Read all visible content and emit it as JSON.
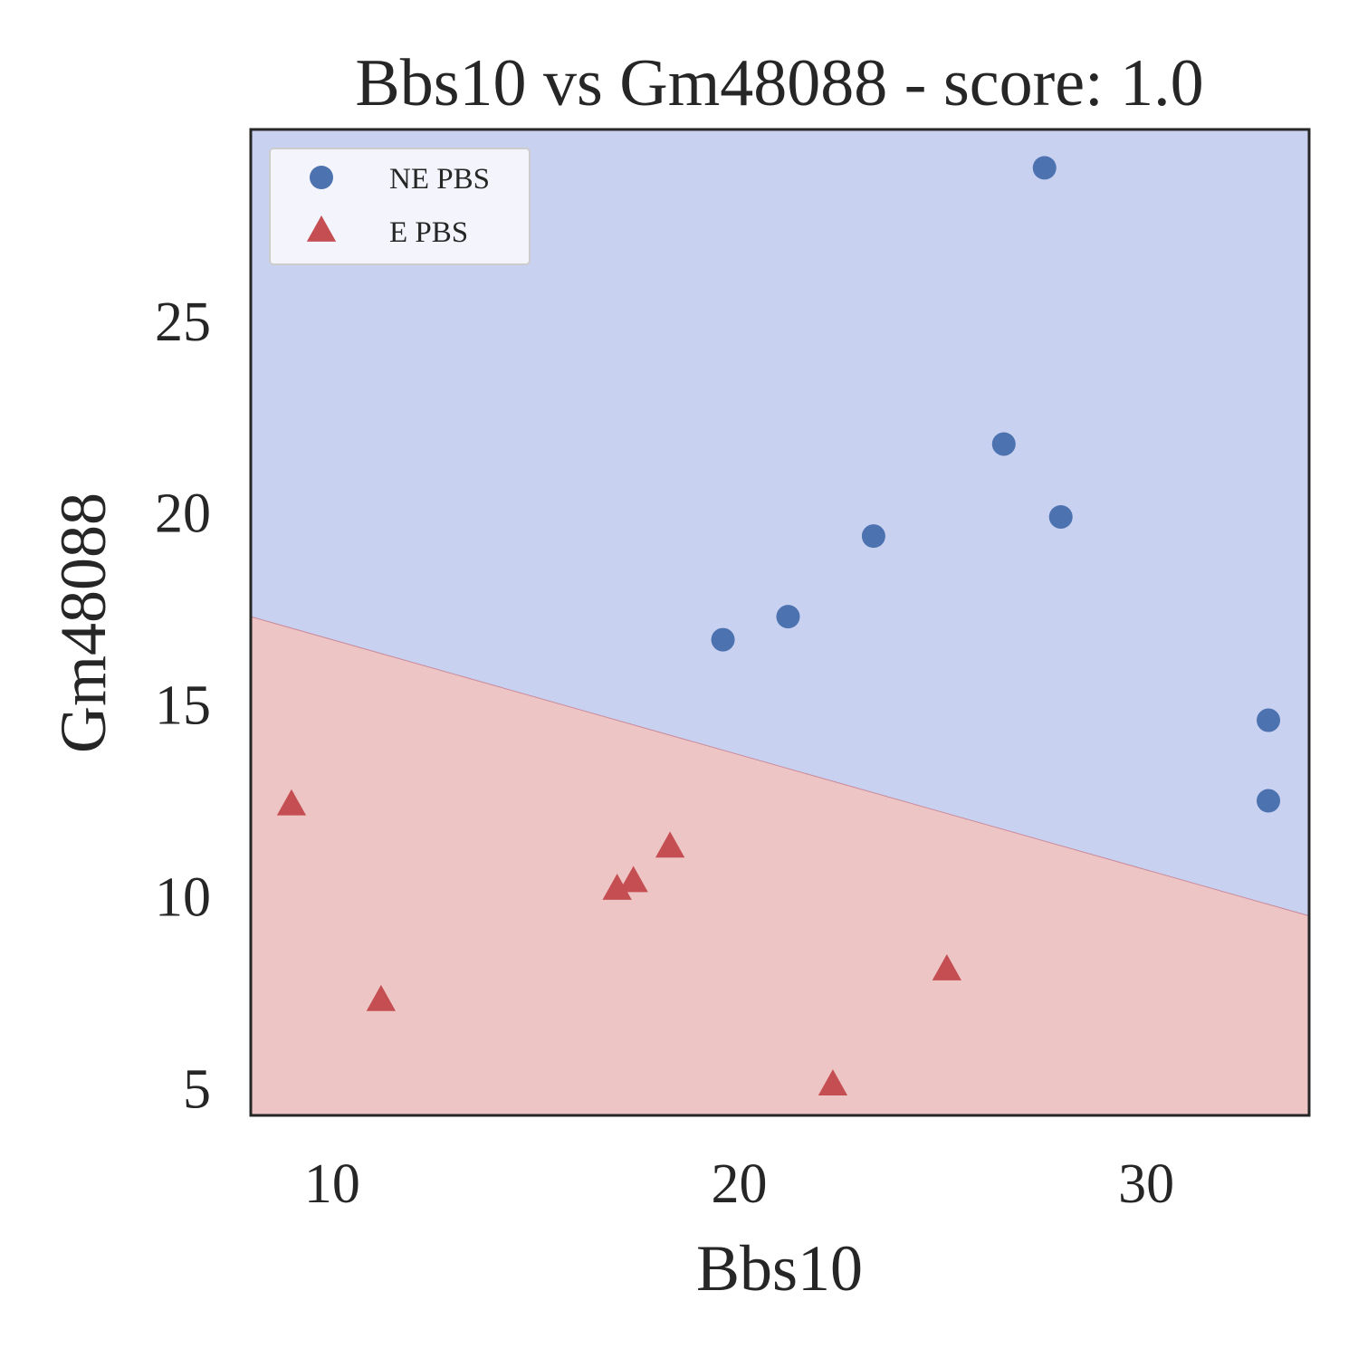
{
  "chart_data": {
    "type": "scatter",
    "title": "Bbs10 vs Gm48088 - score: 1.0",
    "xlabel": "Bbs10",
    "ylabel": "Gm48088",
    "xlim": [
      8,
      34
    ],
    "ylim": [
      4.3,
      30
    ],
    "xticks": [
      "10",
      "20",
      "30"
    ],
    "xtick_values": [
      10,
      20,
      30
    ],
    "yticks": [
      "5",
      "10",
      "15",
      "20",
      "25"
    ],
    "ytick_values": [
      5,
      10,
      15,
      20,
      25
    ],
    "grid": false,
    "legend_position": "top-left",
    "decision_boundary": {
      "x": [
        8,
        34
      ],
      "y": [
        17.3,
        9.5
      ],
      "above_region": "NE PBS",
      "below_region": "E PBS",
      "above_color": "#c9d1f1",
      "below_color": "#eec5c5"
    },
    "series": [
      {
        "name": "NE PBS",
        "marker": "circle",
        "color": "#4c72b0",
        "points": [
          {
            "x": 27.5,
            "y": 29.0
          },
          {
            "x": 26.5,
            "y": 21.8
          },
          {
            "x": 27.9,
            "y": 19.9
          },
          {
            "x": 23.3,
            "y": 19.4
          },
          {
            "x": 21.2,
            "y": 17.3
          },
          {
            "x": 19.6,
            "y": 16.7
          },
          {
            "x": 33.0,
            "y": 14.6
          },
          {
            "x": 33.0,
            "y": 12.5
          }
        ]
      },
      {
        "name": "E PBS",
        "marker": "triangle",
        "color": "#c44e52",
        "points": [
          {
            "x": 9.0,
            "y": 12.4
          },
          {
            "x": 18.3,
            "y": 11.3
          },
          {
            "x": 17.4,
            "y": 10.4
          },
          {
            "x": 17.0,
            "y": 10.2
          },
          {
            "x": 11.2,
            "y": 7.3
          },
          {
            "x": 25.1,
            "y": 8.1
          },
          {
            "x": 22.3,
            "y": 5.1
          }
        ]
      }
    ]
  }
}
